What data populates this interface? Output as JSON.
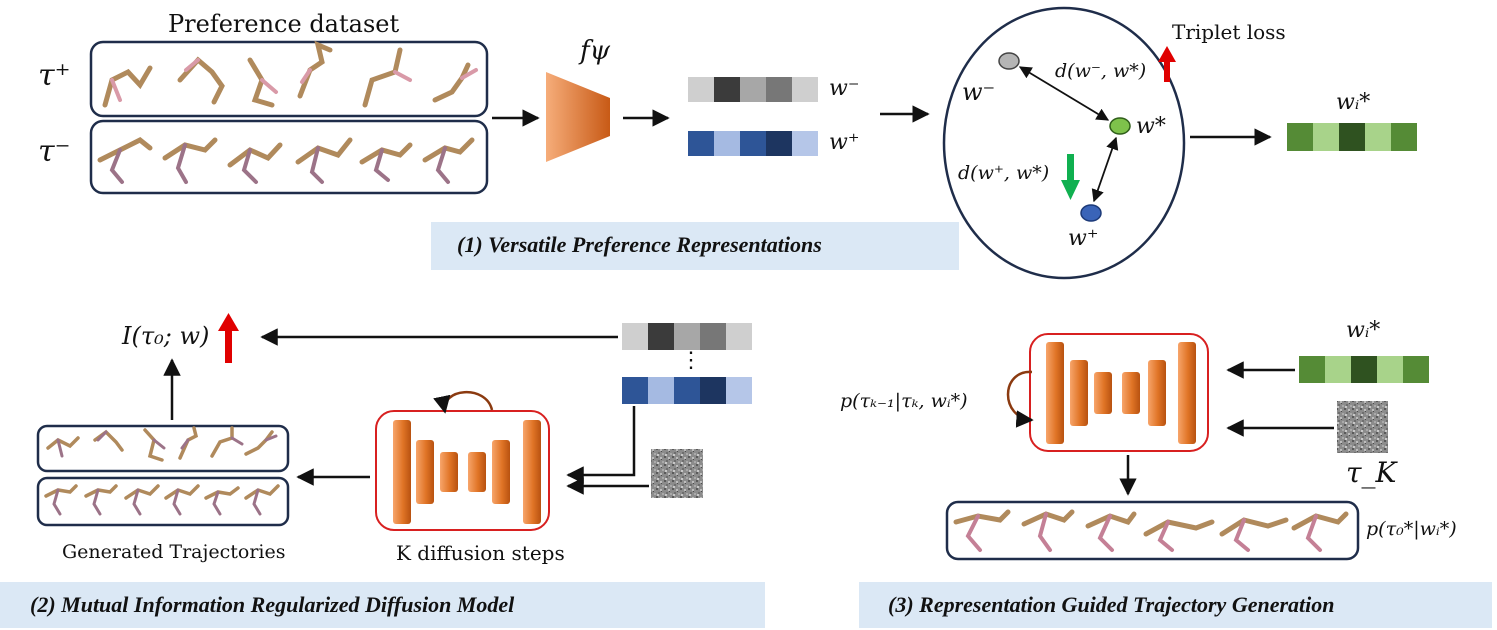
{
  "section1": {
    "dataset_title": "Preference dataset",
    "tau_plus": "τ⁺",
    "tau_minus": "τ⁻",
    "encoder": "fψ",
    "w_minus": "w⁻",
    "w_plus": "w⁺",
    "triplet_loss": "Triplet loss",
    "circle_w_minus": "w⁻",
    "circle_w_star": "w*",
    "circle_w_plus": "w⁺",
    "d_neg": "d(w⁻, w*)",
    "d_pos": "d(w⁺, w*)",
    "w_i_star": "wᵢ*",
    "caption": "(1)  Versatile Preference Representations"
  },
  "section2": {
    "mutual_info": "I(τ₀; w)",
    "dots": "⋮",
    "generated": "Generated Trajectories",
    "diffusion_steps": "K diffusion steps",
    "caption": "(2)  Mutual Information Regularized Diffusion Model"
  },
  "section3": {
    "w_i_star": "wᵢ*",
    "transition": "p(τₖ₋₁|τₖ, wᵢ*)",
    "tau_K": "τ_K",
    "output": "p(τ₀*|wᵢ*)",
    "caption": "(3)  Representation Guided Trajectory Generation"
  },
  "colors": {
    "caption_band": "#dbe8f5",
    "unet_orange": "#e8792c",
    "red_arrow": "#e00000",
    "green_arrow": "#10b050",
    "red_box": "#d82020",
    "navy_box": "#1f2d4a"
  }
}
